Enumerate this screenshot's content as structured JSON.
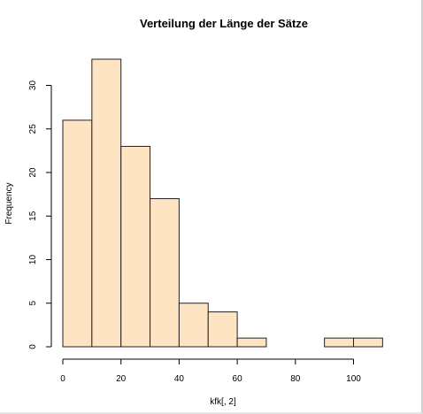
{
  "chart_data": {
    "type": "bar",
    "title": "Verteilung der Länge der Sätze",
    "xlabel": "kfk[, 2]",
    "ylabel": "Frequency",
    "bins": [
      {
        "from": 0,
        "to": 10,
        "count": 26
      },
      {
        "from": 10,
        "to": 20,
        "count": 33
      },
      {
        "from": 20,
        "to": 30,
        "count": 23
      },
      {
        "from": 30,
        "to": 40,
        "count": 17
      },
      {
        "from": 40,
        "to": 50,
        "count": 5
      },
      {
        "from": 50,
        "to": 60,
        "count": 4
      },
      {
        "from": 60,
        "to": 70,
        "count": 1
      },
      {
        "from": 70,
        "to": 80,
        "count": 0
      },
      {
        "from": 80,
        "to": 90,
        "count": 0
      },
      {
        "from": 90,
        "to": 100,
        "count": 1
      },
      {
        "from": 100,
        "to": 110,
        "count": 1
      }
    ],
    "xticks": [
      0,
      20,
      40,
      60,
      80,
      100
    ],
    "yticks": [
      0,
      5,
      10,
      15,
      20,
      25,
      30
    ],
    "xlim": [
      0,
      110
    ],
    "ylim": [
      0,
      33
    ],
    "bar_color": "#ffe4c4",
    "edge_color": "#222222",
    "grid": false
  }
}
